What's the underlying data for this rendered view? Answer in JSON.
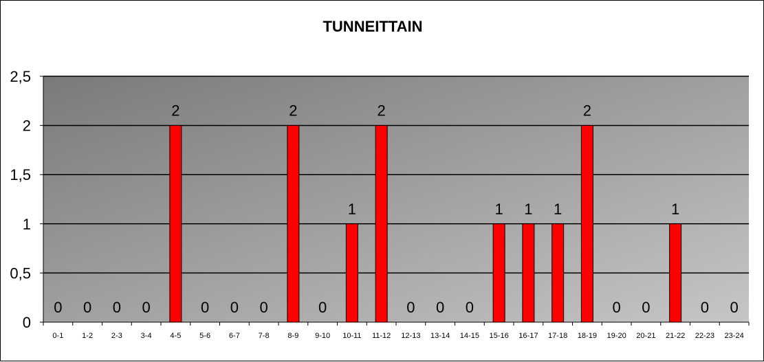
{
  "chart_data": {
    "type": "bar",
    "title": "TUNNEITTAIN",
    "xlabel": "",
    "ylabel": "",
    "categories": [
      "0-1",
      "1-2",
      "2-3",
      "3-4",
      "4-5",
      "5-6",
      "6-7",
      "7-8",
      "8-9",
      "9-10",
      "10-11",
      "11-12",
      "12-13",
      "13-14",
      "14-15",
      "15-16",
      "16-17",
      "17-18",
      "18-19",
      "19-20",
      "20-21",
      "21-22",
      "22-23",
      "23-24"
    ],
    "values": [
      0,
      0,
      0,
      0,
      2,
      0,
      0,
      0,
      2,
      0,
      1,
      2,
      0,
      0,
      0,
      1,
      1,
      1,
      2,
      0,
      0,
      1,
      0,
      0
    ],
    "ylim": [
      0,
      2.5
    ],
    "y_ticks": [
      "0",
      "0,5",
      "1",
      "1,5",
      "2",
      "2,5"
    ],
    "y_tick_values": [
      0,
      0.5,
      1,
      1.5,
      2,
      2.5
    ],
    "grid": true,
    "legend": "none",
    "data_labels": true,
    "colors": {
      "bar": "#ff0000",
      "bar_border": "#000000",
      "plot_gradient_start": "#7a7a7a",
      "plot_gradient_end": "#c6c6c6",
      "gridline": "#000000"
    }
  }
}
